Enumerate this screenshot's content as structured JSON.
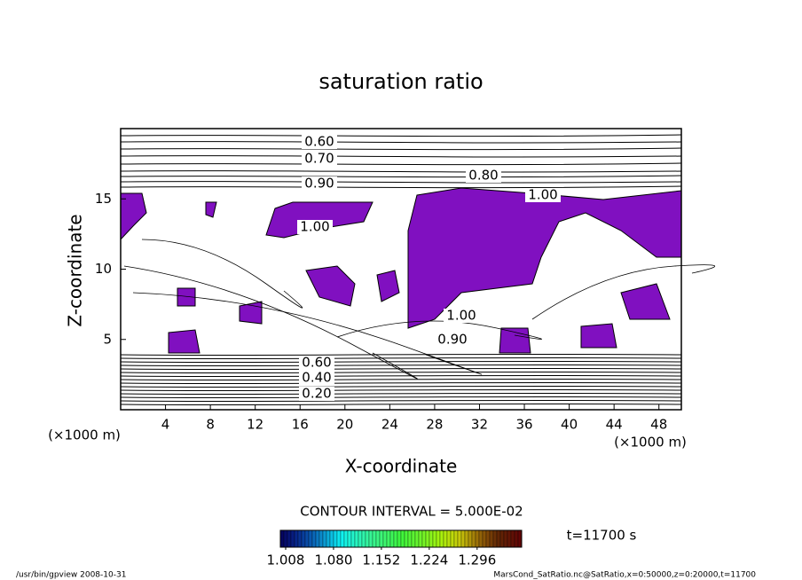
{
  "chart_data": {
    "type": "contour",
    "title": "saturation ratio",
    "x_label": "X-coordinate",
    "y_label": "Z-coordinate",
    "x_unit": "(×1000 m)",
    "y_unit": "(×1000 m)",
    "xlim": [
      0,
      50
    ],
    "ylim": [
      0,
      20
    ],
    "xticks": [
      4,
      8,
      12,
      16,
      20,
      24,
      28,
      32,
      36,
      40,
      44,
      48
    ],
    "yticks": [
      5,
      10,
      15
    ],
    "fill_color": "#8010c0",
    "contour_labels": [
      {
        "value": 0.6,
        "label": "0.60"
      },
      {
        "value": 0.7,
        "label": "0.70"
      },
      {
        "value": 0.8,
        "label": "0.80"
      },
      {
        "value": 0.9,
        "label": "0.90"
      },
      {
        "value": 1.0,
        "label": "1.00"
      },
      {
        "value": 1.0,
        "label": "1.00"
      },
      {
        "value": 1.0,
        "label": "1.00"
      },
      {
        "value": 0.9,
        "label": "0.90"
      },
      {
        "value": 0.6,
        "label": "0.60"
      },
      {
        "value": 0.4,
        "label": "0.40"
      },
      {
        "value": 0.2,
        "label": "0.20"
      }
    ],
    "contour_interval": "CONTOUR INTERVAL = 5.000E-02",
    "colorbar": {
      "clim": [
        1.0,
        1.363
      ],
      "ticks": [
        {
          "value": 1.008,
          "label": "1.008"
        },
        {
          "value": 1.08,
          "label": "1.080"
        },
        {
          "value": 1.152,
          "label": "1.152"
        },
        {
          "value": 1.224,
          "label": "1.224"
        },
        {
          "value": 1.296,
          "label": "1.296"
        }
      ]
    },
    "time_label": "t=11700 s",
    "footer_left": "/usr/bin/gpview   2008-10-31",
    "footer_right": "MarsCond_SatRatio.nc@SatRatio,x=0:50000,z=0:20000,t=11700"
  }
}
